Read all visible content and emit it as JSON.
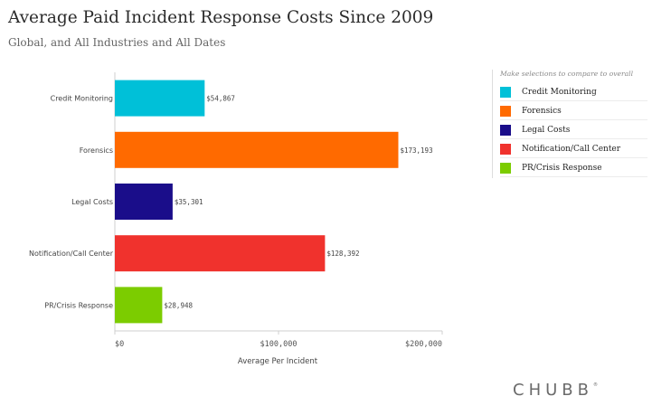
{
  "header": {
    "title": "Average Paid Incident Response Costs Since 2009",
    "subtitle": "Global, and All Industries and  All Dates"
  },
  "legend": {
    "hint": "Make selections to compare to overall",
    "items": [
      {
        "label": "Credit Monitoring",
        "color": "#00c0d8"
      },
      {
        "label": "Forensics",
        "color": "#ff6a00"
      },
      {
        "label": "Legal Costs",
        "color": "#1a0d8a"
      },
      {
        "label": "Notification/Call Center",
        "color": "#f0322d"
      },
      {
        "label": "PR/Crisis Response",
        "color": "#7ccc00"
      }
    ]
  },
  "brand": {
    "logo": "CHUBB",
    "mark": "®"
  },
  "chart_data": {
    "type": "bar",
    "orientation": "horizontal",
    "title": "Average Paid Incident Response Costs Since 2009",
    "subtitle": "Global, and All Industries and  All Dates",
    "xlabel": "Average Per Incident",
    "ylabel": "",
    "categories": [
      "Credit Monitoring",
      "Forensics",
      "Legal Costs",
      "Notification/Call Center",
      "PR/Crisis Response"
    ],
    "values": [
      54867,
      173193,
      35301,
      128392,
      28948
    ],
    "value_labels": [
      "$54,867",
      "$173,193",
      "$35,301",
      "$128,392",
      "$28,948"
    ],
    "colors": [
      "#00c0d8",
      "#ff6a00",
      "#1a0d8a",
      "#f0322d",
      "#7ccc00"
    ],
    "xlim": [
      0,
      200000
    ],
    "x_ticks": [
      0,
      100000,
      200000
    ],
    "x_tick_labels": [
      "$0",
      "$100,000",
      "$200,000"
    ],
    "grid": false,
    "legend_position": "right"
  }
}
